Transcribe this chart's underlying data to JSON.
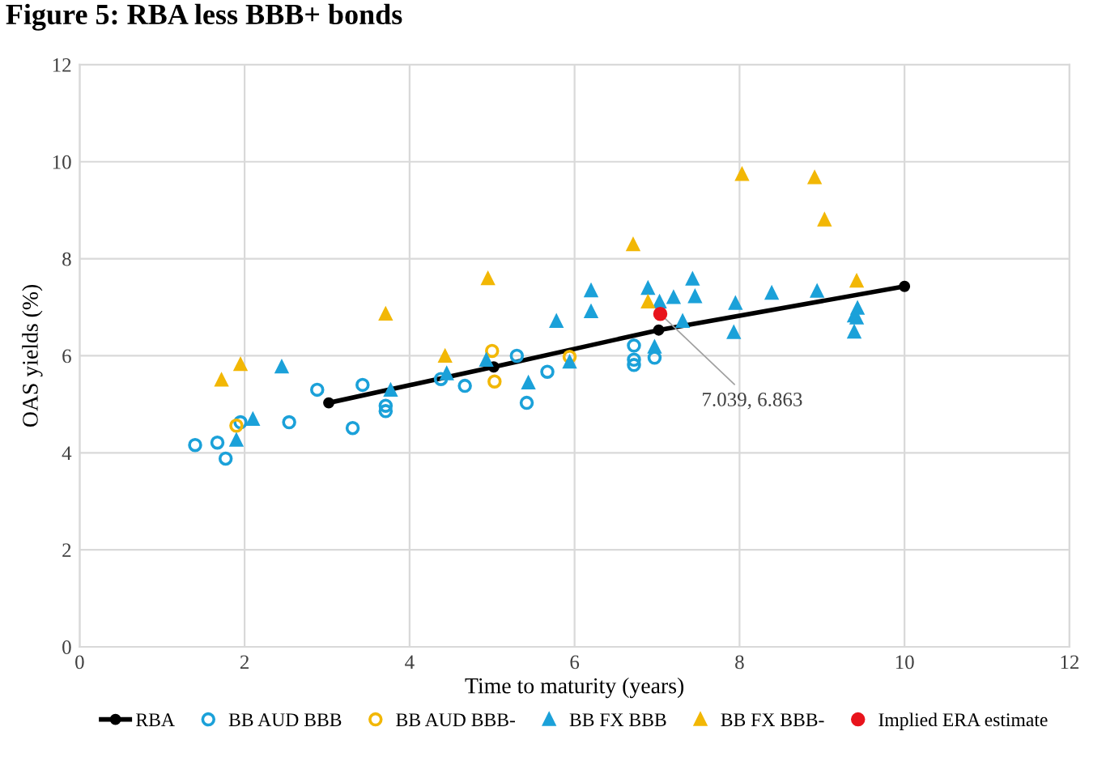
{
  "chart_data": {
    "type": "scatter",
    "title": "Figure 5: RBA less BBB+ bonds",
    "xlabel": "Time to maturity (years)",
    "ylabel": "OAS yields (%)",
    "xlim": [
      0,
      12
    ],
    "ylim": [
      0,
      12
    ],
    "xticks": [
      0,
      2,
      4,
      6,
      8,
      10,
      12
    ],
    "yticks": [
      0,
      2,
      4,
      6,
      8,
      10,
      12
    ],
    "grid": true,
    "legend": "bottom",
    "annotations": [
      {
        "text": "7.039, 6.863",
        "x": 7.039,
        "y": 6.863
      }
    ],
    "series": [
      {
        "name": "RBA",
        "type": "line",
        "color": "#000000",
        "marker": "circle",
        "x": [
          3.02,
          5.02,
          7.02,
          10.0
        ],
        "values": [
          5.03,
          5.77,
          6.53,
          7.43
        ]
      },
      {
        "name": "BB AUD BBB",
        "color": "#1ba1d9",
        "marker": "open circle",
        "x": [
          1.4,
          1.67,
          1.77,
          1.95,
          2.54,
          2.88,
          3.31,
          3.43,
          3.71,
          3.71,
          4.38,
          4.67,
          5.3,
          5.42,
          5.67,
          6.72,
          6.72,
          6.72,
          6.97
        ],
        "values": [
          4.16,
          4.21,
          3.88,
          4.63,
          4.63,
          5.3,
          4.51,
          5.4,
          4.97,
          4.86,
          5.52,
          5.38,
          6.0,
          5.03,
          5.67,
          6.21,
          5.92,
          5.81,
          5.96
        ]
      },
      {
        "name": "BB AUD BBB-",
        "color": "#f2b705",
        "marker": "open circle",
        "x": [
          1.9,
          5.0,
          5.03,
          5.94
        ],
        "values": [
          4.56,
          6.1,
          5.47,
          5.98
        ]
      },
      {
        "name": "BB FX BBB",
        "color": "#1ba1d9",
        "marker": "triangle",
        "x": [
          1.9,
          2.1,
          2.45,
          3.77,
          4.45,
          4.93,
          5.44,
          5.78,
          5.94,
          6.2,
          6.2,
          6.89,
          7.03,
          6.97,
          7.2,
          7.31,
          7.43,
          7.46,
          7.93,
          7.95,
          8.39,
          8.94,
          9.39,
          9.42,
          9.43,
          9.39
        ],
        "values": [
          4.26,
          4.69,
          5.77,
          5.29,
          5.63,
          5.91,
          5.44,
          6.71,
          5.87,
          7.34,
          6.91,
          7.39,
          7.11,
          6.18,
          7.2,
          6.71,
          7.58,
          7.22,
          6.48,
          7.08,
          7.29,
          7.33,
          6.82,
          6.78,
          6.98,
          6.49
        ]
      },
      {
        "name": "BB FX BBB-",
        "color": "#f2b705",
        "marker": "triangle",
        "x": [
          1.72,
          1.95,
          3.71,
          4.43,
          4.95,
          6.71,
          6.89,
          8.03,
          8.91,
          9.03,
          9.42
        ],
        "values": [
          5.5,
          5.82,
          6.86,
          5.99,
          7.59,
          8.29,
          7.11,
          9.74,
          9.67,
          8.8,
          7.54
        ]
      },
      {
        "name": "Implied ERA estimate",
        "color": "#e8141c",
        "marker": "circle",
        "x": [
          7.039
        ],
        "values": [
          6.863
        ]
      }
    ]
  }
}
